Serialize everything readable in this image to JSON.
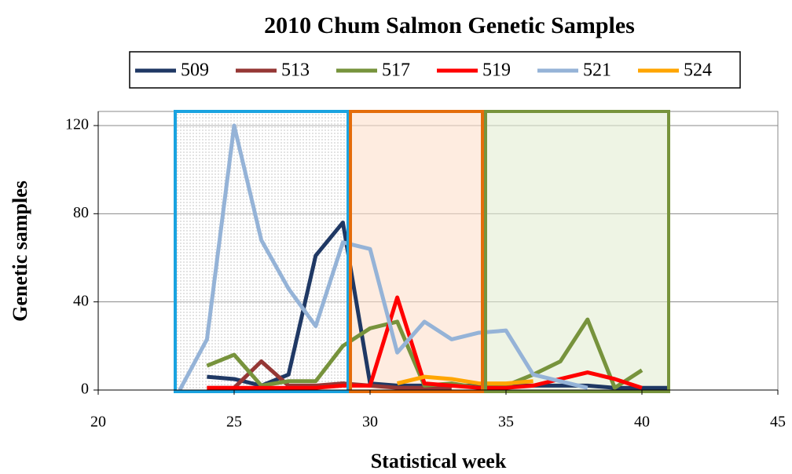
{
  "chart_data": {
    "type": "line",
    "title": "2010 Chum Salmon Genetic Samples",
    "xlabel": "Statistical week",
    "ylabel": "Genetic samples",
    "x": [
      23,
      24,
      25,
      26,
      27,
      28,
      29,
      30,
      31,
      32,
      33,
      34,
      35,
      36,
      37,
      38,
      39,
      40,
      41
    ],
    "series": [
      {
        "name": "509",
        "color": "#1f3864",
        "values": [
          null,
          6,
          5,
          2,
          7,
          61,
          76,
          3,
          2,
          2,
          2,
          2,
          2,
          2,
          2,
          2,
          1,
          1,
          1
        ]
      },
      {
        "name": "513",
        "color": "#953735",
        "values": [
          null,
          1,
          1,
          13,
          2,
          2,
          3,
          2,
          1,
          1,
          1,
          null,
          null,
          null,
          null,
          null,
          null,
          null,
          null
        ]
      },
      {
        "name": "517",
        "color": "#77933c",
        "values": [
          null,
          11,
          16,
          2,
          4,
          4,
          20,
          28,
          31,
          2,
          3,
          1,
          2,
          7,
          13,
          32,
          1,
          9,
          null
        ]
      },
      {
        "name": "519",
        "color": "#ff0000",
        "values": [
          null,
          1,
          1,
          1,
          1,
          1,
          2,
          2,
          42,
          3,
          2,
          1,
          1,
          2,
          5,
          8,
          5,
          1,
          null
        ]
      },
      {
        "name": "521",
        "color": "#95b3d7",
        "values": [
          0,
          23,
          120,
          68,
          46,
          29,
          67,
          64,
          17,
          31,
          23,
          26,
          27,
          7,
          4,
          1,
          null,
          null,
          null
        ]
      },
      {
        "name": "524",
        "color": "#ffa500",
        "values": [
          null,
          null,
          null,
          null,
          null,
          null,
          null,
          null,
          3,
          6,
          5,
          3,
          3,
          4,
          null,
          null,
          null,
          null,
          null
        ]
      }
    ],
    "xlim": [
      20,
      45
    ],
    "xticks": [
      20,
      25,
      30,
      35,
      40,
      45
    ],
    "ylim": [
      0,
      120
    ],
    "yticks": [
      0,
      40,
      80,
      120
    ],
    "grid": true,
    "legend": "top"
  }
}
